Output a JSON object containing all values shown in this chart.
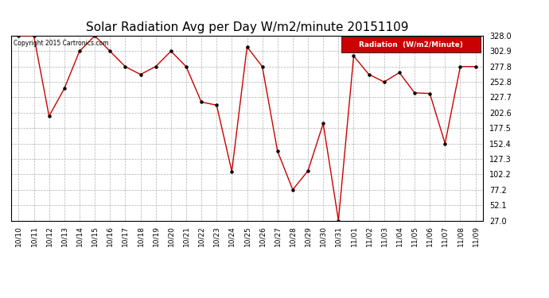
{
  "title": "Solar Radiation Avg per Day W/m2/minute 20151109",
  "copyright": "Copyright 2015 Cartronics.com",
  "legend_label": "Radiation  (W/m2/Minute)",
  "x_labels": [
    "10/10",
    "10/11",
    "10/12",
    "10/13",
    "10/14",
    "10/15",
    "10/16",
    "10/17",
    "10/18",
    "10/19",
    "10/20",
    "10/21",
    "10/22",
    "10/23",
    "10/24",
    "10/25",
    "10/26",
    "10/27",
    "10/28",
    "10/29",
    "10/30",
    "10/31",
    "11/01",
    "11/02",
    "11/03",
    "11/04",
    "11/05",
    "11/06",
    "11/07",
    "11/08",
    "11/09"
  ],
  "values": [
    328.0,
    328.0,
    197.0,
    242.0,
    302.9,
    328.0,
    302.9,
    277.8,
    265.0,
    277.8,
    302.9,
    277.8,
    220.0,
    215.0,
    107.0,
    310.0,
    277.8,
    140.0,
    77.2,
    108.0,
    185.0,
    27.0,
    295.0,
    265.0,
    252.8,
    268.0,
    235.0,
    234.0,
    152.4,
    277.8,
    277.8
  ],
  "line_color": "#cc0000",
  "marker_color": "#000000",
  "bg_color": "#ffffff",
  "plot_bg_color": "#ffffff",
  "grid_color": "#b0b0b0",
  "y_ticks": [
    27.0,
    52.1,
    77.2,
    102.2,
    127.3,
    152.4,
    177.5,
    202.6,
    227.7,
    252.8,
    277.8,
    302.9,
    328.0
  ],
  "y_min": 27.0,
  "y_max": 328.0,
  "legend_bg": "#cc0000",
  "legend_text_color": "#ffffff",
  "title_fontsize": 11,
  "tick_fontsize": 6.5,
  "ytick_fontsize": 7
}
